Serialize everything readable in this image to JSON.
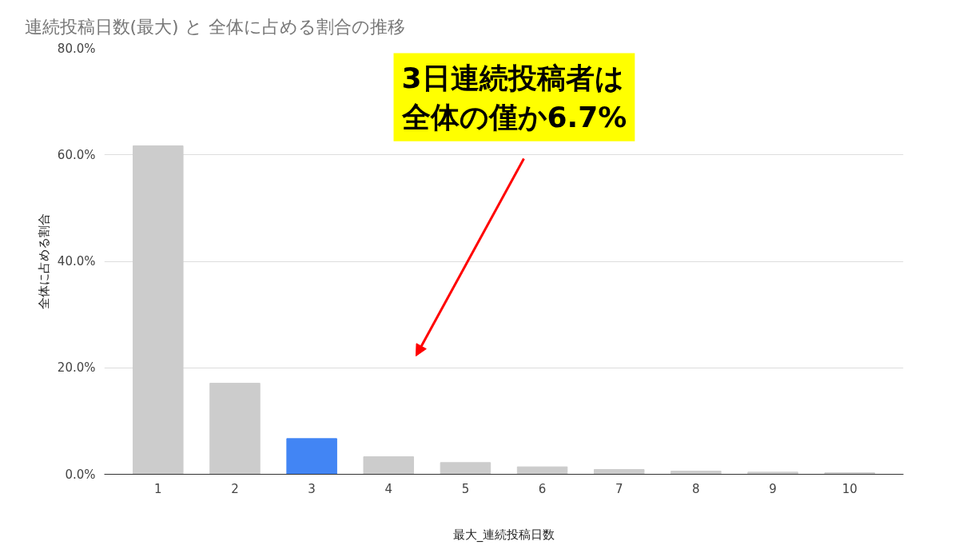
{
  "chart_data": {
    "type": "bar",
    "title": "連続投稿日数(最大) と 全体に占める割合の推移",
    "xlabel": "最大_連続投稿日数",
    "ylabel": "全体に占める割合",
    "categories": [
      "1",
      "2",
      "3",
      "4",
      "5",
      "6",
      "7",
      "8",
      "9",
      "10"
    ],
    "values": [
      61.7,
      17.1,
      6.7,
      3.3,
      2.2,
      1.4,
      0.9,
      0.6,
      0.4,
      0.3
    ],
    "colors": [
      "#cccccc",
      "#cccccc",
      "#4285f4",
      "#cccccc",
      "#cccccc",
      "#cccccc",
      "#cccccc",
      "#cccccc",
      "#cccccc",
      "#cccccc"
    ],
    "ylim": [
      0,
      80
    ],
    "yticks": [
      {
        "value": 0,
        "label": "0.0%"
      },
      {
        "value": 20,
        "label": "20.0%"
      },
      {
        "value": 40,
        "label": "40.0%"
      },
      {
        "value": 60,
        "label": "60.0%"
      },
      {
        "value": 80,
        "label": "80.0%"
      }
    ],
    "grid": "y",
    "annotations": [
      "3日連続投稿者は全体の僅か6.7%"
    ]
  }
}
